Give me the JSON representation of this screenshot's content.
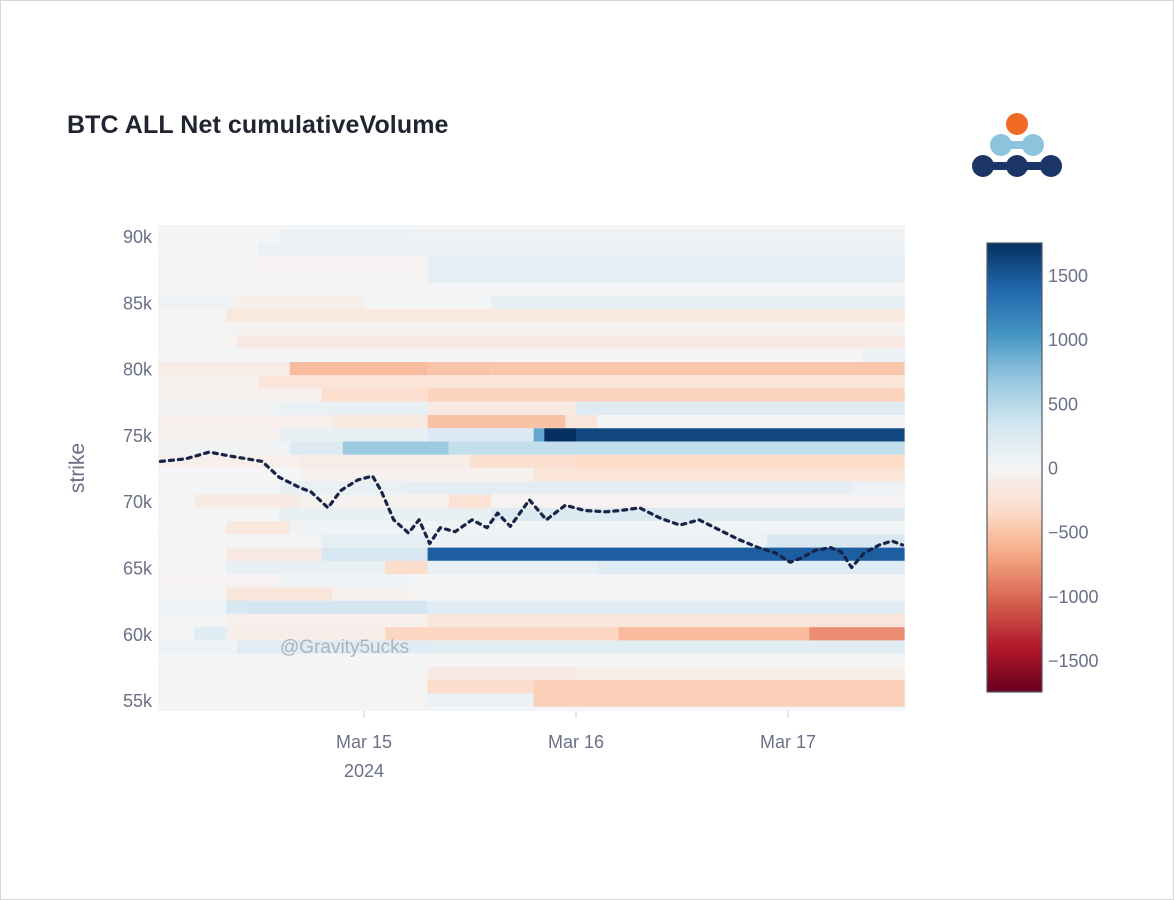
{
  "title": "BTC ALL Net cumulativeVolume",
  "logo": {
    "name": "brand-logo",
    "colors": {
      "top": "#f26a21",
      "middle": "#8ec3de",
      "bottom": "#1b3566"
    }
  },
  "watermark": "@Gravity5ucks",
  "chart_data": {
    "type": "heatmap",
    "title": "BTC ALL Net cumulativeVolume",
    "xlabel": "",
    "ylabel": "strike",
    "x_unit": "days since 2024-03-14 00:00",
    "xlim": [
      0.03,
      3.55
    ],
    "ylim": [
      54500,
      90800
    ],
    "x_ticks": [
      {
        "value": 1,
        "label": "Mar 15",
        "sublabel": "2024"
      },
      {
        "value": 2,
        "label": "Mar 16",
        "sublabel": ""
      },
      {
        "value": 3,
        "label": "Mar 17",
        "sublabel": ""
      }
    ],
    "y_ticks": [
      {
        "value": 90000,
        "label": "90k"
      },
      {
        "value": 85000,
        "label": "85k"
      },
      {
        "value": 80000,
        "label": "80k"
      },
      {
        "value": 75000,
        "label": "75k"
      },
      {
        "value": 70000,
        "label": "70k"
      },
      {
        "value": 65000,
        "label": "65k"
      },
      {
        "value": 60000,
        "label": "60k"
      },
      {
        "value": 55000,
        "label": "55k"
      }
    ],
    "colorscale": {
      "name": "RdBu",
      "zmin": -1750,
      "zmax": 1750,
      "stops": [
        [
          0.0,
          "#67001f"
        ],
        [
          0.1,
          "#b2182b"
        ],
        [
          0.2,
          "#d6604d"
        ],
        [
          0.3,
          "#f4a582"
        ],
        [
          0.4,
          "#fddbc7"
        ],
        [
          0.5,
          "#f4f5f6"
        ],
        [
          0.6,
          "#d1e5f0"
        ],
        [
          0.7,
          "#92c5de"
        ],
        [
          0.8,
          "#4393c3"
        ],
        [
          0.9,
          "#2166ac"
        ],
        [
          1.0,
          "#053061"
        ]
      ],
      "tick_values": [
        1500,
        1000,
        500,
        0,
        -500,
        -1000,
        -1500
      ],
      "tick_labels": [
        "1500",
        "1000",
        "500",
        "0",
        "−500",
        "−1000",
        "−1500"
      ]
    },
    "heatmap_rows": [
      {
        "strike": 90000,
        "segments": [
          [
            0.03,
            0.6,
            20
          ],
          [
            0.6,
            1.2,
            100
          ],
          [
            1.2,
            3.55,
            60
          ]
        ]
      },
      {
        "strike": 89000,
        "segments": [
          [
            0.03,
            0.5,
            10
          ],
          [
            0.5,
            1.2,
            90
          ],
          [
            1.2,
            3.55,
            80
          ]
        ]
      },
      {
        "strike": 88000,
        "segments": [
          [
            0.03,
            0.5,
            -20
          ],
          [
            0.5,
            1.3,
            -40
          ],
          [
            1.3,
            3.55,
            140
          ]
        ]
      },
      {
        "strike": 87000,
        "segments": [
          [
            0.03,
            1.3,
            -30
          ],
          [
            1.3,
            3.55,
            160
          ]
        ]
      },
      {
        "strike": 86000,
        "segments": [
          [
            0.03,
            3.55,
            20
          ]
        ]
      },
      {
        "strike": 85000,
        "segments": [
          [
            0.03,
            0.4,
            60
          ],
          [
            0.4,
            1.0,
            -100
          ],
          [
            1.0,
            1.6,
            20
          ],
          [
            1.6,
            3.55,
            120
          ]
        ]
      },
      {
        "strike": 84000,
        "segments": [
          [
            0.03,
            0.35,
            -20
          ],
          [
            0.35,
            3.55,
            -180
          ]
        ]
      },
      {
        "strike": 83000,
        "segments": [
          [
            0.03,
            3.55,
            -30
          ]
        ]
      },
      {
        "strike": 82000,
        "segments": [
          [
            0.03,
            0.4,
            -20
          ],
          [
            0.4,
            3.55,
            -150
          ]
        ]
      },
      {
        "strike": 81000,
        "segments": [
          [
            0.03,
            3.55,
            0
          ],
          [
            3.35,
            3.55,
            80
          ]
        ]
      },
      {
        "strike": 80000,
        "segments": [
          [
            0.03,
            0.65,
            -120
          ],
          [
            0.65,
            1.3,
            -560
          ],
          [
            1.3,
            1.6,
            -500
          ],
          [
            1.6,
            3.55,
            -480
          ]
        ]
      },
      {
        "strike": 79000,
        "segments": [
          [
            0.03,
            0.5,
            -60
          ],
          [
            0.5,
            3.55,
            -220
          ]
        ]
      },
      {
        "strike": 78000,
        "segments": [
          [
            0.03,
            0.8,
            -60
          ],
          [
            0.8,
            1.3,
            -300
          ],
          [
            1.3,
            3.55,
            -400
          ]
        ]
      },
      {
        "strike": 77000,
        "segments": [
          [
            0.03,
            0.6,
            30
          ],
          [
            0.6,
            1.3,
            120
          ],
          [
            1.3,
            2.0,
            -150
          ],
          [
            2.0,
            3.55,
            220
          ]
        ]
      },
      {
        "strike": 76000,
        "segments": [
          [
            0.03,
            0.85,
            -80
          ],
          [
            0.85,
            1.3,
            -160
          ],
          [
            1.3,
            1.95,
            -520
          ],
          [
            1.95,
            2.1,
            -200
          ],
          [
            2.1,
            3.55,
            20
          ]
        ]
      },
      {
        "strike": 75000,
        "segments": [
          [
            0.03,
            0.6,
            -60
          ],
          [
            0.6,
            1.3,
            120
          ],
          [
            1.3,
            1.8,
            260
          ],
          [
            1.8,
            1.85,
            900
          ],
          [
            1.85,
            2.0,
            1750
          ],
          [
            2.0,
            3.55,
            1600
          ]
        ]
      },
      {
        "strike": 74000,
        "segments": [
          [
            0.03,
            0.65,
            40
          ],
          [
            0.65,
            0.9,
            220
          ],
          [
            0.9,
            1.4,
            650
          ],
          [
            1.4,
            3.55,
            420
          ]
        ]
      },
      {
        "strike": 73000,
        "segments": [
          [
            0.03,
            0.7,
            -80
          ],
          [
            0.7,
            1.5,
            -120
          ],
          [
            1.5,
            2.0,
            -280
          ],
          [
            2.0,
            3.55,
            -340
          ]
        ]
      },
      {
        "strike": 72000,
        "segments": [
          [
            0.03,
            0.7,
            10
          ],
          [
            0.7,
            1.8,
            -60
          ],
          [
            1.8,
            3.55,
            -220
          ]
        ]
      },
      {
        "strike": 71000,
        "segments": [
          [
            0.03,
            0.6,
            20
          ],
          [
            0.6,
            1.2,
            120
          ],
          [
            1.2,
            3.3,
            170
          ],
          [
            3.3,
            3.55,
            90
          ]
        ]
      },
      {
        "strike": 70000,
        "segments": [
          [
            0.03,
            0.2,
            10
          ],
          [
            0.2,
            0.7,
            -140
          ],
          [
            0.7,
            1.4,
            -50
          ],
          [
            1.4,
            1.6,
            -260
          ],
          [
            1.6,
            3.55,
            -40
          ]
        ]
      },
      {
        "strike": 69000,
        "segments": [
          [
            0.03,
            0.6,
            20
          ],
          [
            0.6,
            1.6,
            120
          ],
          [
            1.6,
            3.55,
            230
          ]
        ]
      },
      {
        "strike": 68000,
        "segments": [
          [
            0.03,
            0.35,
            10
          ],
          [
            0.35,
            0.65,
            -180
          ],
          [
            0.65,
            3.55,
            40
          ]
        ]
      },
      {
        "strike": 67000,
        "segments": [
          [
            0.03,
            0.8,
            20
          ],
          [
            0.8,
            1.3,
            150
          ],
          [
            1.3,
            2.9,
            90
          ],
          [
            2.9,
            3.55,
            280
          ]
        ]
      },
      {
        "strike": 66000,
        "segments": [
          [
            0.03,
            0.35,
            -20
          ],
          [
            0.35,
            0.8,
            -150
          ],
          [
            0.8,
            1.3,
            300
          ],
          [
            1.3,
            3.55,
            1450
          ]
        ]
      },
      {
        "strike": 65000,
        "segments": [
          [
            0.03,
            0.35,
            10
          ],
          [
            0.35,
            1.1,
            120
          ],
          [
            1.1,
            1.3,
            -330
          ],
          [
            1.3,
            2.1,
            120
          ],
          [
            2.1,
            3.55,
            200
          ]
        ]
      },
      {
        "strike": 64000,
        "segments": [
          [
            0.03,
            0.6,
            -40
          ],
          [
            0.6,
            1.2,
            40
          ],
          [
            1.2,
            3.55,
            20
          ]
        ]
      },
      {
        "strike": 63000,
        "segments": [
          [
            0.03,
            0.35,
            -10
          ],
          [
            0.35,
            0.85,
            -200
          ],
          [
            0.85,
            1.2,
            -60
          ],
          [
            1.2,
            3.55,
            -30
          ]
        ]
      },
      {
        "strike": 62000,
        "segments": [
          [
            0.03,
            0.35,
            40
          ],
          [
            0.35,
            0.45,
            280
          ],
          [
            0.45,
            1.3,
            320
          ],
          [
            1.3,
            3.55,
            200
          ]
        ]
      },
      {
        "strike": 61000,
        "segments": [
          [
            0.03,
            0.35,
            20
          ],
          [
            0.35,
            1.3,
            -80
          ],
          [
            1.3,
            3.55,
            -200
          ]
        ]
      },
      {
        "strike": 60000,
        "segments": [
          [
            0.03,
            0.2,
            20
          ],
          [
            0.2,
            0.35,
            200
          ],
          [
            0.35,
            1.1,
            -100
          ],
          [
            1.1,
            2.2,
            -380
          ],
          [
            2.2,
            3.1,
            -560
          ],
          [
            3.1,
            3.55,
            -820
          ]
        ]
      },
      {
        "strike": 59000,
        "segments": [
          [
            0.03,
            0.4,
            40
          ],
          [
            0.4,
            1.3,
            200
          ],
          [
            1.3,
            3.55,
            180
          ]
        ]
      },
      {
        "strike": 58000,
        "segments": [
          [
            0.03,
            3.55,
            10
          ]
        ]
      },
      {
        "strike": 57000,
        "segments": [
          [
            0.03,
            1.3,
            -10
          ],
          [
            1.3,
            2.0,
            -150
          ],
          [
            2.0,
            3.55,
            -110
          ]
        ]
      },
      {
        "strike": 56000,
        "segments": [
          [
            0.03,
            1.3,
            -20
          ],
          [
            1.3,
            1.8,
            -330
          ],
          [
            1.8,
            3.55,
            -420
          ]
        ]
      },
      {
        "strike": 55000,
        "segments": [
          [
            0.03,
            1.3,
            -20
          ],
          [
            1.3,
            1.8,
            80
          ],
          [
            1.8,
            3.55,
            -420
          ]
        ]
      }
    ],
    "price_line": {
      "name": "BTC price",
      "style": "dotted",
      "color": "#172447",
      "x": [
        0.04,
        0.16,
        0.27,
        0.37,
        0.52,
        0.6,
        0.7,
        0.75,
        0.83,
        0.89,
        0.97,
        1.04,
        1.08,
        1.14,
        1.21,
        1.26,
        1.31,
        1.36,
        1.43,
        1.51,
        1.58,
        1.63,
        1.69,
        1.78,
        1.86,
        1.95,
        2.04,
        2.14,
        2.21,
        2.3,
        2.4,
        2.49,
        2.58,
        2.68,
        2.77,
        2.86,
        2.94,
        3.01,
        3.06,
        3.13,
        3.2,
        3.25,
        3.3,
        3.36,
        3.43,
        3.49,
        3.54
      ],
      "y": [
        73000,
        73200,
        73700,
        73400,
        73000,
        71800,
        71000,
        70700,
        69500,
        70800,
        71600,
        71900,
        70800,
        68600,
        67600,
        68600,
        66800,
        68000,
        67700,
        68600,
        68000,
        69100,
        68100,
        70100,
        68600,
        69700,
        69300,
        69200,
        69300,
        69500,
        68700,
        68200,
        68600,
        67800,
        67100,
        66500,
        66100,
        65400,
        65700,
        66300,
        66500,
        66200,
        65000,
        66100,
        66700,
        67000,
        66700
      ]
    }
  }
}
